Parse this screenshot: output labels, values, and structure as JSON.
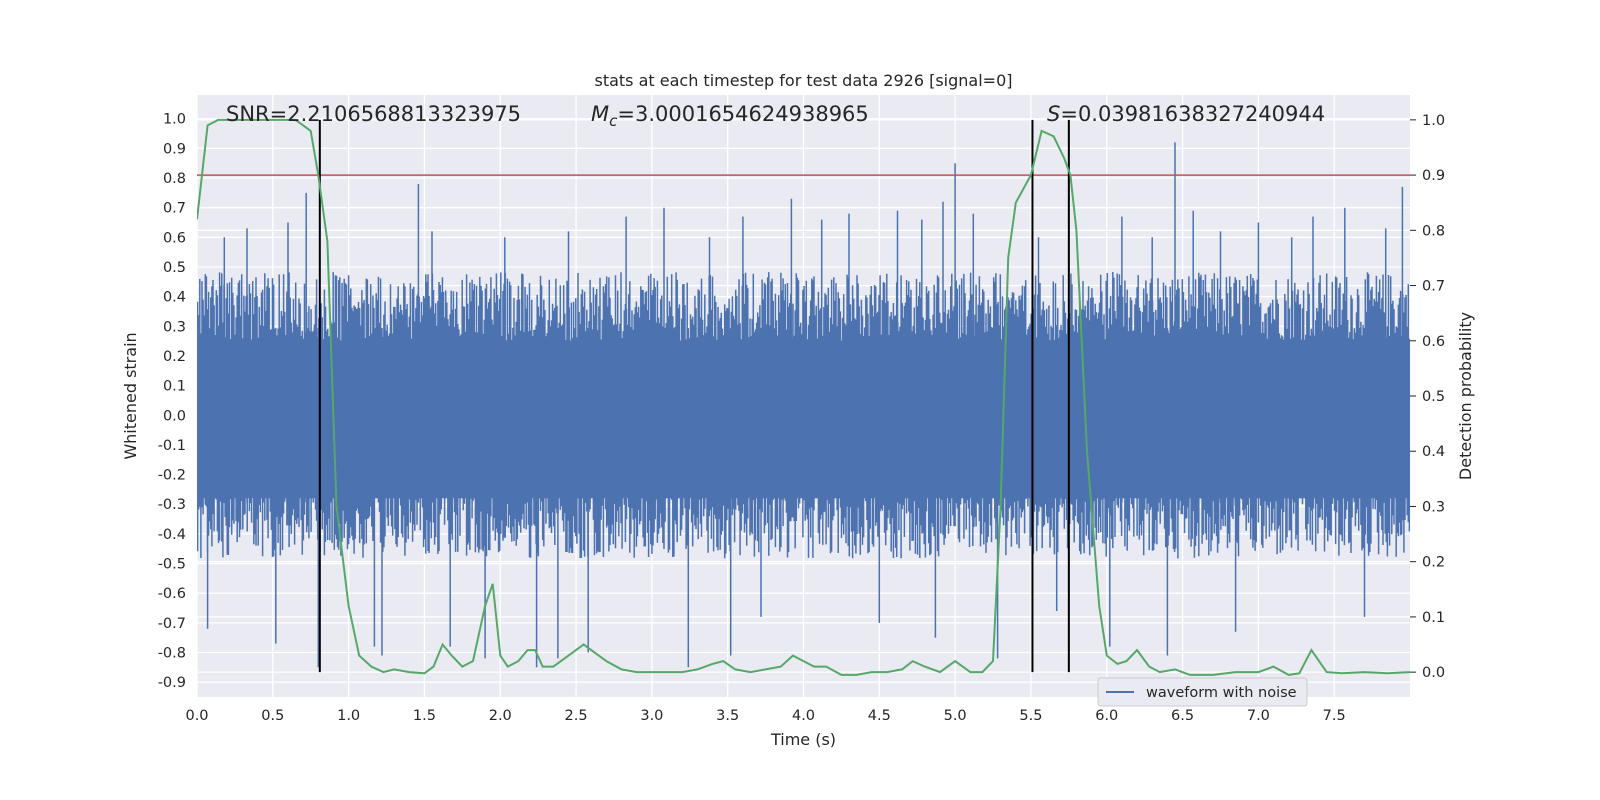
{
  "chart_data": {
    "type": "line",
    "title": "stats at each timestep for test data 2926 [signal=0]",
    "xlabel": "Time (s)",
    "ylabel": "Whitened strain",
    "y2label": "Detection probability",
    "xlim": [
      0.0,
      8.0
    ],
    "ylim": [
      -0.95,
      1.08
    ],
    "y2lim": [
      -0.045,
      1.045
    ],
    "grid": true,
    "xticks": [
      "0.0",
      "0.5",
      "1.0",
      "1.5",
      "2.0",
      "2.5",
      "3.0",
      "3.5",
      "4.0",
      "4.5",
      "5.0",
      "5.5",
      "6.0",
      "6.5",
      "7.0",
      "7.5"
    ],
    "yticks": [
      "1.0",
      "0.9",
      "0.8",
      "0.7",
      "0.6",
      "0.5",
      "0.4",
      "0.3",
      "0.2",
      "0.1",
      "0.0",
      "-0.1",
      "-0.2",
      "-0.3",
      "-0.4",
      "-0.5",
      "-0.6",
      "-0.7",
      "-0.8",
      "-0.9"
    ],
    "y2ticks": [
      "1.0",
      "0.9",
      "0.8",
      "0.7",
      "0.6",
      "0.5",
      "0.4",
      "0.3",
      "0.2",
      "0.1",
      "0.0"
    ],
    "annotations": {
      "snr": "SNR=2.2106568813323975",
      "mc": "=3.0001654624938965",
      "mc_symbol": "M",
      "mc_sub": "c",
      "s": "=0.03981638327240944",
      "s_symbol": "S"
    },
    "legend": {
      "entries": [
        "waveform with noise"
      ],
      "location": "lower-right"
    },
    "colors": {
      "waveform": "#4c72b0",
      "probability": "#55a868",
      "threshold": "#c44e52",
      "markers": "#000000",
      "background": "#eaeaf2",
      "grid": "#ffffff"
    },
    "series": [
      {
        "name": "waveform with noise",
        "axis": "left",
        "style": "noise",
        "envelope_typical": 0.42,
        "spikes": [
          [
            0.07,
            -0.72
          ],
          [
            0.18,
            0.6
          ],
          [
            0.33,
            0.63
          ],
          [
            0.52,
            -0.77
          ],
          [
            0.6,
            0.65
          ],
          [
            0.72,
            0.75
          ],
          [
            0.8,
            -0.85
          ],
          [
            1.17,
            -0.78
          ],
          [
            1.22,
            -0.81
          ],
          [
            1.46,
            0.78
          ],
          [
            1.55,
            0.62
          ],
          [
            1.67,
            -0.78
          ],
          [
            1.9,
            -0.82
          ],
          [
            2.03,
            0.6
          ],
          [
            2.24,
            -0.85
          ],
          [
            2.38,
            -0.82
          ],
          [
            2.45,
            0.62
          ],
          [
            2.58,
            -0.8
          ],
          [
            2.83,
            0.67
          ],
          [
            3.08,
            0.7
          ],
          [
            3.24,
            -0.85
          ],
          [
            3.38,
            0.6
          ],
          [
            3.52,
            -0.81
          ],
          [
            3.6,
            0.67
          ],
          [
            3.72,
            -0.68
          ],
          [
            3.92,
            0.73
          ],
          [
            4.12,
            0.66
          ],
          [
            4.3,
            0.68
          ],
          [
            4.5,
            -0.7
          ],
          [
            4.62,
            0.69
          ],
          [
            4.78,
            0.66
          ],
          [
            4.87,
            -0.75
          ],
          [
            4.92,
            0.72
          ],
          [
            5.0,
            0.85
          ],
          [
            5.12,
            0.68
          ],
          [
            5.28,
            -0.82
          ],
          [
            5.55,
            0.6
          ],
          [
            5.67,
            -0.66
          ],
          [
            6.02,
            -0.78
          ],
          [
            6.1,
            0.67
          ],
          [
            6.3,
            0.6
          ],
          [
            6.4,
            -0.81
          ],
          [
            6.45,
            0.92
          ],
          [
            6.57,
            0.69
          ],
          [
            6.75,
            0.62
          ],
          [
            6.85,
            -0.73
          ],
          [
            7.0,
            0.65
          ],
          [
            7.22,
            0.6
          ],
          [
            7.36,
            0.67
          ],
          [
            7.57,
            0.7
          ],
          [
            7.7,
            -0.68
          ],
          [
            7.84,
            0.63
          ],
          [
            7.95,
            0.77
          ]
        ]
      },
      {
        "name": "",
        "axis": "right",
        "style": "line",
        "x": [
          0.0,
          0.07,
          0.14,
          0.3,
          0.5,
          0.65,
          0.75,
          0.8,
          0.86,
          0.92,
          1.0,
          1.07,
          1.15,
          1.23,
          1.3,
          1.4,
          1.5,
          1.56,
          1.62,
          1.68,
          1.75,
          1.82,
          1.9,
          1.95,
          2.0,
          2.05,
          2.12,
          2.18,
          2.23,
          2.28,
          2.35,
          2.45,
          2.55,
          2.6,
          2.7,
          2.8,
          2.9,
          3.0,
          3.1,
          3.2,
          3.3,
          3.4,
          3.47,
          3.55,
          3.65,
          3.75,
          3.85,
          3.93,
          4.0,
          4.07,
          4.15,
          4.25,
          4.35,
          4.45,
          4.55,
          4.65,
          4.72,
          4.8,
          4.9,
          5.0,
          5.1,
          5.18,
          5.25,
          5.3,
          5.35,
          5.4,
          5.5,
          5.57,
          5.65,
          5.72,
          5.76,
          5.8,
          5.87,
          5.95,
          6.0,
          6.07,
          6.13,
          6.2,
          6.28,
          6.35,
          6.45,
          6.55,
          6.7,
          6.85,
          7.0,
          7.1,
          7.2,
          7.27,
          7.35,
          7.45,
          7.55,
          7.7,
          7.85,
          8.0
        ],
        "values": [
          0.82,
          0.99,
          1.0,
          1.0,
          1.0,
          1.0,
          0.98,
          0.9,
          0.78,
          0.3,
          0.12,
          0.03,
          0.01,
          0.0,
          0.005,
          0.0,
          -0.002,
          0.01,
          0.05,
          0.03,
          0.01,
          0.02,
          0.12,
          0.16,
          0.03,
          0.01,
          0.02,
          0.04,
          0.04,
          0.01,
          0.01,
          0.03,
          0.05,
          0.04,
          0.02,
          0.005,
          0.0,
          0.0,
          0.0,
          0.0,
          0.005,
          0.015,
          0.02,
          0.005,
          0.0,
          0.005,
          0.01,
          0.03,
          0.02,
          0.01,
          0.01,
          -0.005,
          -0.005,
          0.0,
          0.0,
          0.005,
          0.02,
          0.01,
          0.0,
          0.02,
          0.0,
          0.0,
          0.02,
          0.3,
          0.75,
          0.85,
          0.9,
          0.98,
          0.97,
          0.93,
          0.9,
          0.8,
          0.4,
          0.12,
          0.03,
          0.015,
          0.02,
          0.04,
          0.01,
          0.0,
          0.005,
          -0.005,
          -0.005,
          0.0,
          0.0,
          0.01,
          -0.005,
          -0.002,
          0.04,
          0.0,
          -0.002,
          0.0,
          -0.002,
          0.0
        ]
      }
    ],
    "threshold": {
      "axis": "right",
      "value": 0.9
    },
    "vlines": [
      0.81,
      5.51,
      5.75
    ]
  }
}
